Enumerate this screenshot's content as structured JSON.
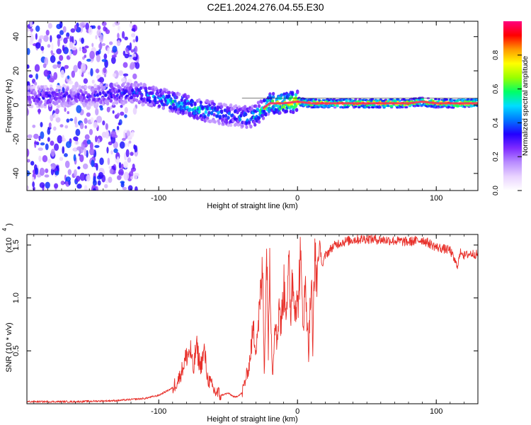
{
  "title": "C2E1.2024.276.04.55.E30",
  "colors": {
    "snr_line": "#e8302a",
    "ridge": "#ff2a5f",
    "frame": "#000000",
    "colorbar_stops": [
      "#ffffff",
      "#e9d3ff",
      "#b98cff",
      "#7f2bff",
      "#2200ff",
      "#0077ff",
      "#00ddff",
      "#00ff66",
      "#99ff00",
      "#ffff00",
      "#ff9900",
      "#ff0000",
      "#ff007f"
    ]
  },
  "chart_data": [
    {
      "type": "heatmap",
      "title": "",
      "xlabel": "Height of straight line (km)",
      "ylabel": "Frequency (Hz)",
      "xlim": [
        -195,
        130
      ],
      "ylim": [
        -50,
        49
      ],
      "x_ticks": [
        -100,
        0,
        100
      ],
      "x_tick_labels": [
        "-100",
        "0",
        "100"
      ],
      "y_ticks": [
        40,
        20,
        0,
        -20,
        -40
      ],
      "y_tick_labels": [
        "40",
        "20",
        "0",
        "-20",
        "-40"
      ],
      "colorbar": {
        "label": "Normalized spectral amplitude",
        "range": [
          0,
          1
        ],
        "ticks": [
          0.0,
          0.2,
          0.4,
          0.6,
          0.8
        ],
        "tick_labels": [
          "0.0",
          "0.2",
          "0.4",
          "0.6",
          "0.8"
        ]
      },
      "ridge": {
        "x": [
          -195,
          -180,
          -160,
          -140,
          -120,
          -110,
          -100,
          -90,
          -80,
          -70,
          -60,
          -50,
          -45,
          -40,
          -35,
          -30,
          -25,
          -20,
          -10,
          0,
          10,
          20,
          40,
          60,
          80,
          90,
          100,
          110,
          130
        ],
        "freq": [
          5,
          5,
          5,
          6,
          7,
          6,
          4,
          2,
          0,
          -3,
          -4,
          -6,
          -6,
          -7,
          -7,
          -6,
          -2,
          1,
          1,
          2,
          1,
          1,
          1,
          1,
          1,
          2,
          1,
          1,
          1
        ],
        "amplitude": [
          0.3,
          0.35,
          0.3,
          0.35,
          0.4,
          0.45,
          0.5,
          0.55,
          0.6,
          0.6,
          0.5,
          0.45,
          0.45,
          0.5,
          0.55,
          0.6,
          0.7,
          0.75,
          0.8,
          0.9,
          0.9,
          0.85,
          0.9,
          0.95,
          0.95,
          0.8,
          0.9,
          0.95,
          0.95
        ]
      },
      "noise_region": {
        "x_range": [
          -195,
          -115
        ],
        "amplitude_max": 0.35
      },
      "grid": false
    },
    {
      "type": "line",
      "title": "",
      "xlabel": "Height of straight line (km)",
      "ylabel": "SNR (10 * v/v)",
      "y_exponent_label": "(x10",
      "y_exponent_power": "4",
      "xlim": [
        -195,
        130
      ],
      "ylim": [
        0,
        1.6
      ],
      "x_ticks": [
        -100,
        0,
        100
      ],
      "x_tick_labels": [
        "-100",
        "0",
        "100"
      ],
      "y_ticks": [
        0.5,
        1.0,
        1.5
      ],
      "y_tick_labels": [
        "0.5",
        "1.0",
        "1.5"
      ],
      "series": [
        {
          "x": [
            -195,
            -160,
            -130,
            -110,
            -100,
            -90,
            -85,
            -80,
            -77,
            -75,
            -73,
            -70,
            -67,
            -65,
            -60,
            -55,
            -50,
            -45,
            -40,
            -35,
            -32,
            -30,
            -28,
            -25,
            -24,
            -22,
            -21,
            -20,
            -18,
            -16,
            -15,
            -13,
            -12,
            -10,
            -8,
            -6,
            -5,
            -4,
            -2,
            0,
            2,
            4,
            6,
            8,
            10,
            11,
            12,
            14,
            16,
            18,
            20,
            25,
            30,
            40,
            50,
            60,
            70,
            80,
            90,
            100,
            110,
            115,
            118,
            120,
            125,
            130
          ],
          "y": [
            0.02,
            0.02,
            0.03,
            0.05,
            0.08,
            0.15,
            0.25,
            0.45,
            0.5,
            0.3,
            0.55,
            0.35,
            0.5,
            0.25,
            0.12,
            0.08,
            0.1,
            0.06,
            0.1,
            0.35,
            0.7,
            0.55,
            0.8,
            1.25,
            0.3,
            1.5,
            0.45,
            1.4,
            0.25,
            0.9,
            0.55,
            1.0,
            0.7,
            1.1,
            0.95,
            1.25,
            0.8,
            1.2,
            1.0,
            0.9,
            1.35,
            0.8,
            1.1,
            0.5,
            1.2,
            0.4,
            1.35,
            1.2,
            1.5,
            1.3,
            1.4,
            1.48,
            1.52,
            1.55,
            1.56,
            1.55,
            1.54,
            1.53,
            1.55,
            1.48,
            1.45,
            1.3,
            1.45,
            1.4,
            1.42,
            1.41
          ]
        }
      ],
      "grid": false
    }
  ]
}
